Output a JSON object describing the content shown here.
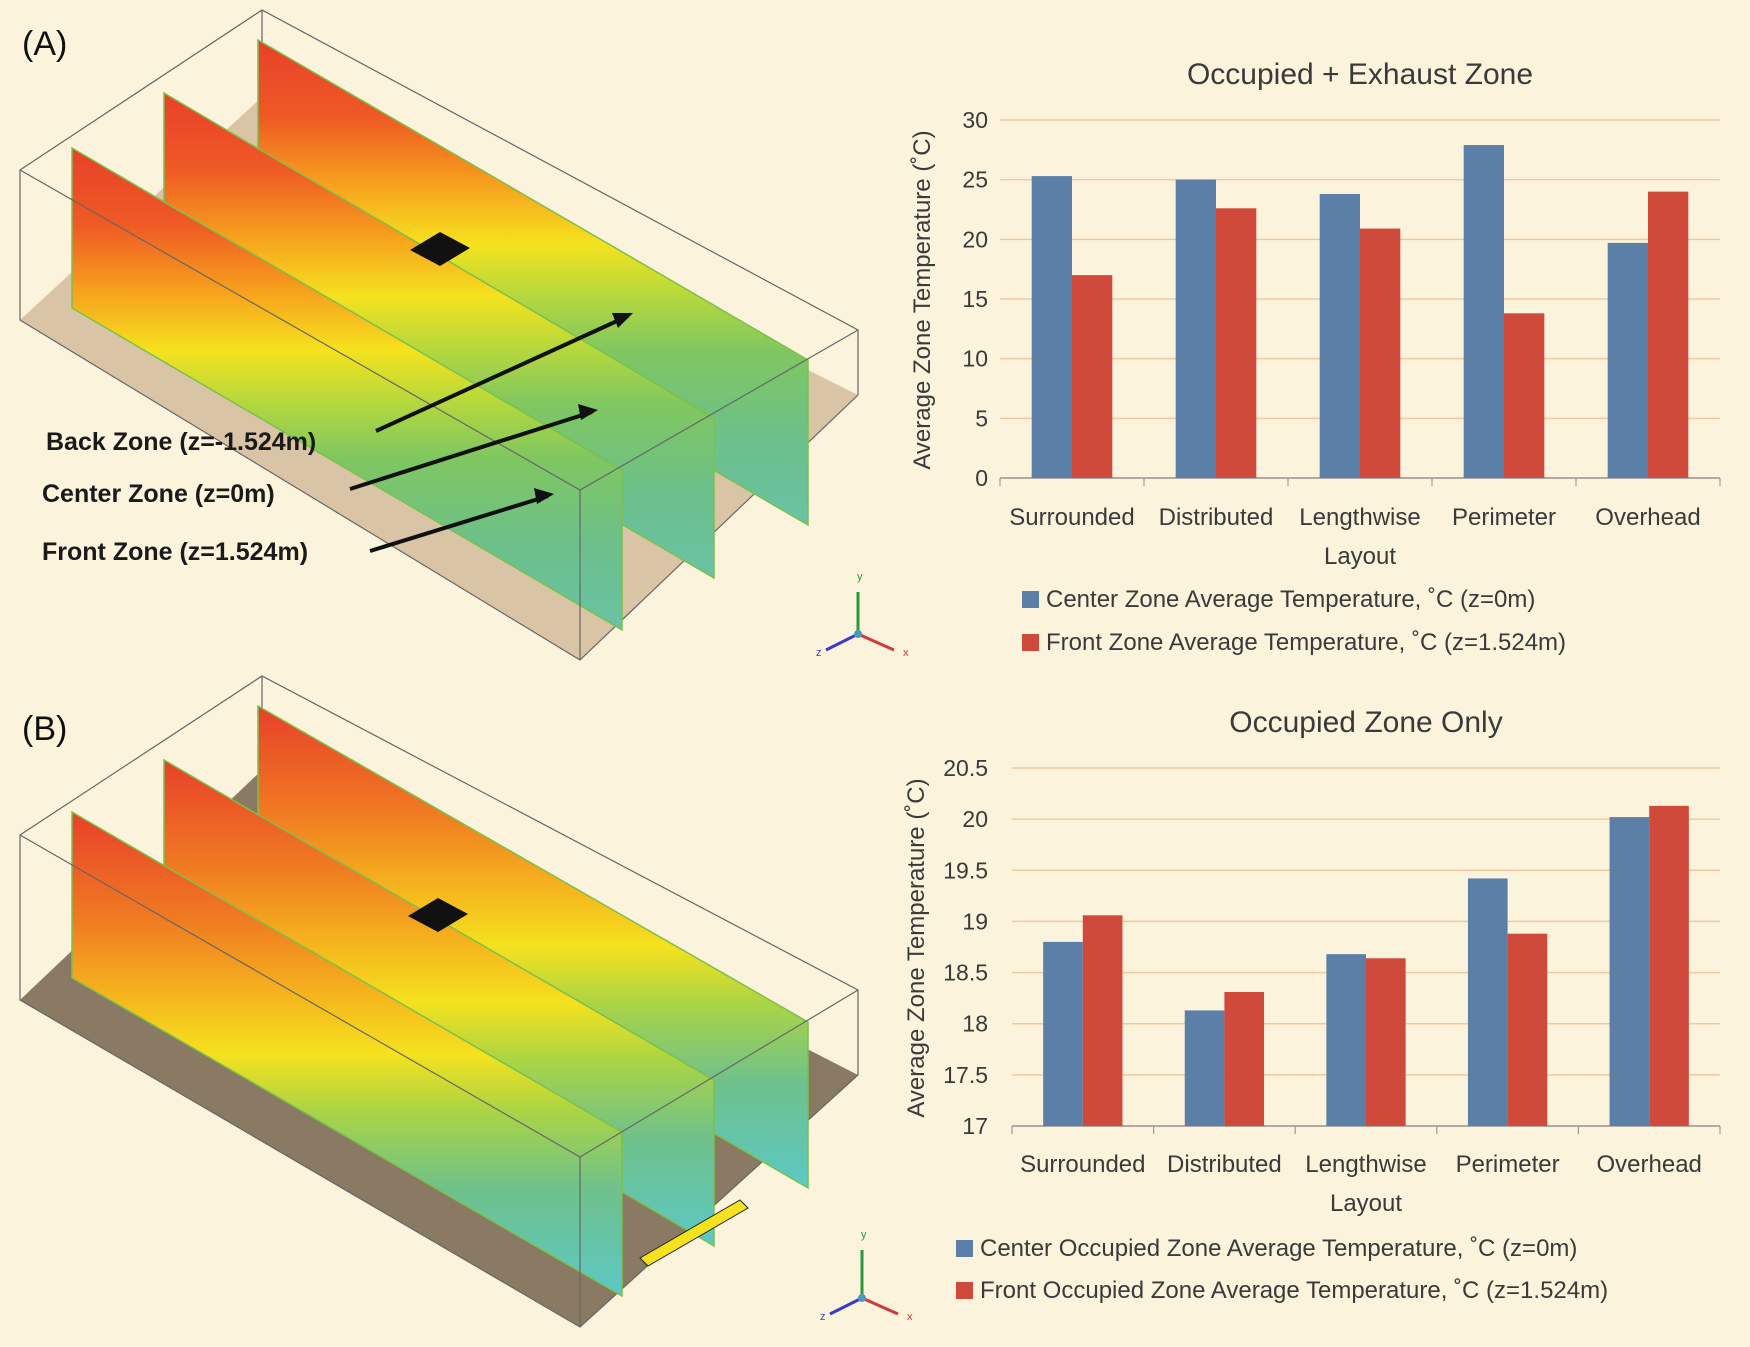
{
  "panels": [
    {
      "label": "(A)"
    },
    {
      "label": "(B)"
    }
  ],
  "annotations": {
    "back": "Back Zone (z=-1.524m)",
    "center": "Center Zone (z=0m)",
    "front": "Front Zone (z=1.524m)"
  },
  "axis_triad": {
    "x": "x",
    "y": "y",
    "z": "z"
  },
  "colors": {
    "center_series": "#5b7fa6",
    "front_series": "#d04a3c",
    "background": "#fbf3dc",
    "gridline": "#f0c9a0",
    "text": "#3a3a3a"
  },
  "chart_data": [
    {
      "type": "bar",
      "title": "Occupied + Exhaust Zone",
      "xlabel": "Layout",
      "ylabel": "Average Zone Temperature (˚C)",
      "ylim": [
        0,
        30
      ],
      "yticks": [
        "0",
        "5",
        "10",
        "15",
        "20",
        "25",
        "30"
      ],
      "categories": [
        "Surrounded",
        "Distributed",
        "Lengthwise",
        "Perimeter",
        "Overhead"
      ],
      "series": [
        {
          "name": "Center Zone Average Temperature, ˚C  (z=0m)",
          "values": [
            25.3,
            25.0,
            23.8,
            27.9,
            19.7
          ]
        },
        {
          "name": "Front Zone Average Temperature, ˚C (z=1.524m)",
          "values": [
            17.0,
            22.6,
            20.9,
            13.8,
            24.0
          ]
        }
      ]
    },
    {
      "type": "bar",
      "title": "Occupied Zone Only",
      "xlabel": "Layout",
      "ylabel": "Average Zone Temperature (˚C)",
      "ylim": [
        17,
        20.5
      ],
      "yticks": [
        "17",
        "17.5",
        "18",
        "18.5",
        "19",
        "19.5",
        "20",
        "20.5"
      ],
      "categories": [
        "Surrounded",
        "Distributed",
        "Lengthwise",
        "Perimeter",
        "Overhead"
      ],
      "series": [
        {
          "name": "Center Occupied Zone Average Temperature, ˚C  (z=0m)",
          "values": [
            18.8,
            18.13,
            18.68,
            19.42,
            20.02
          ]
        },
        {
          "name": "Front Occupied Zone Average Temperature, ˚C (z=1.524m)",
          "values": [
            19.06,
            18.31,
            18.64,
            18.88,
            20.13
          ]
        }
      ]
    }
  ]
}
